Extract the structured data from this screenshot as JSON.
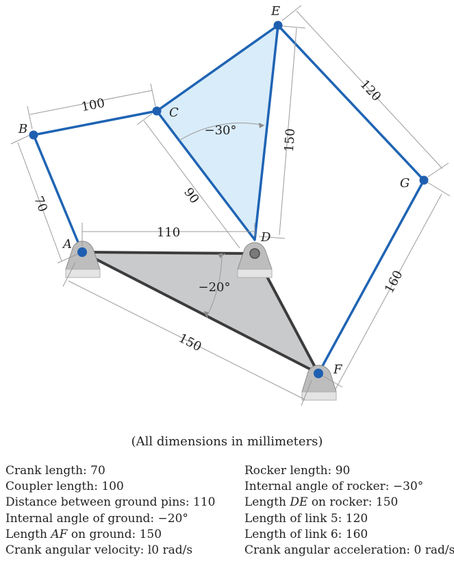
{
  "points": {
    "A": "A",
    "B": "B",
    "C": "C",
    "D": "D",
    "E": "E",
    "F": "F",
    "G": "G"
  },
  "dimensions": {
    "crank": "70",
    "coupler": "100",
    "ground_pins": "110",
    "rocker": "90",
    "de": "150",
    "link5": "120",
    "af": "150",
    "link6": "160",
    "ground_angle": "−20°",
    "rocker_angle": "−30°"
  },
  "caption": "(All dimensions in millimeters)",
  "specs_left": [
    {
      "label": "Crank length: 70"
    },
    {
      "label": "Coupler length: 100"
    },
    {
      "label": "Distance between ground pins: 110"
    },
    {
      "label": "Internal angle of ground: −20°"
    },
    {
      "pre": "Length ",
      "em": "AF",
      "post": " on ground: 150"
    },
    {
      "label": "Crank angular velocity: l0 rad/s"
    }
  ],
  "specs_right": [
    {
      "label": "Rocker length: 90"
    },
    {
      "label": "Internal angle of rocker: −30°"
    },
    {
      "pre": "Length ",
      "em": "DE",
      "post": " on rocker: 150"
    },
    {
      "label": "Length of link 5: 120"
    },
    {
      "label": "Length of link 6: 160"
    },
    {
      "label": "Crank angular acceleration: 0 rad/s"
    }
  ],
  "colors": {
    "link": "#1f64b4",
    "joint": "#1f5fb0",
    "rocker_fill": "#d9ecf9",
    "ground_fill": "#c8cacc",
    "dim_line": "#9a9a9a"
  }
}
